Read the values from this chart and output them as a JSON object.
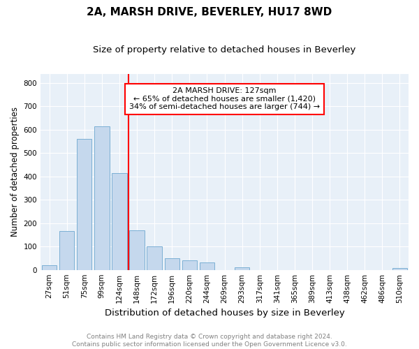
{
  "title1": "2A, MARSH DRIVE, BEVERLEY, HU17 8WD",
  "title2": "Size of property relative to detached houses in Beverley",
  "xlabel": "Distribution of detached houses by size in Beverley",
  "ylabel": "Number of detached properties",
  "bin_labels": [
    "27sqm",
    "51sqm",
    "75sqm",
    "99sqm",
    "124sqm",
    "148sqm",
    "172sqm",
    "196sqm",
    "220sqm",
    "244sqm",
    "269sqm",
    "293sqm",
    "317sqm",
    "341sqm",
    "365sqm",
    "389sqm",
    "413sqm",
    "438sqm",
    "462sqm",
    "486sqm",
    "510sqm"
  ],
  "bar_heights": [
    20,
    165,
    560,
    615,
    415,
    170,
    102,
    50,
    40,
    33,
    0,
    12,
    0,
    0,
    0,
    0,
    0,
    0,
    0,
    0,
    8
  ],
  "bar_color": "#c5d8ed",
  "bar_edgecolor": "#7bafd4",
  "vline_color": "red",
  "vline_bin_index": 4,
  "annotation_text": "2A MARSH DRIVE: 127sqm\n← 65% of detached houses are smaller (1,420)\n34% of semi-detached houses are larger (744) →",
  "annotation_box_color": "white",
  "annotation_box_edgecolor": "red",
  "ylim": [
    0,
    840
  ],
  "yticks": [
    0,
    100,
    200,
    300,
    400,
    500,
    600,
    700,
    800
  ],
  "footnote": "Contains HM Land Registry data © Crown copyright and database right 2024.\nContains public sector information licensed under the Open Government Licence v3.0.",
  "bg_color": "white",
  "plot_bg_color": "#e8f0f8",
  "grid_color": "white",
  "title1_fontsize": 11,
  "title2_fontsize": 9.5,
  "xlabel_fontsize": 9.5,
  "ylabel_fontsize": 8.5,
  "tick_fontsize": 7.5,
  "annotation_fontsize": 8,
  "footnote_fontsize": 6.5
}
